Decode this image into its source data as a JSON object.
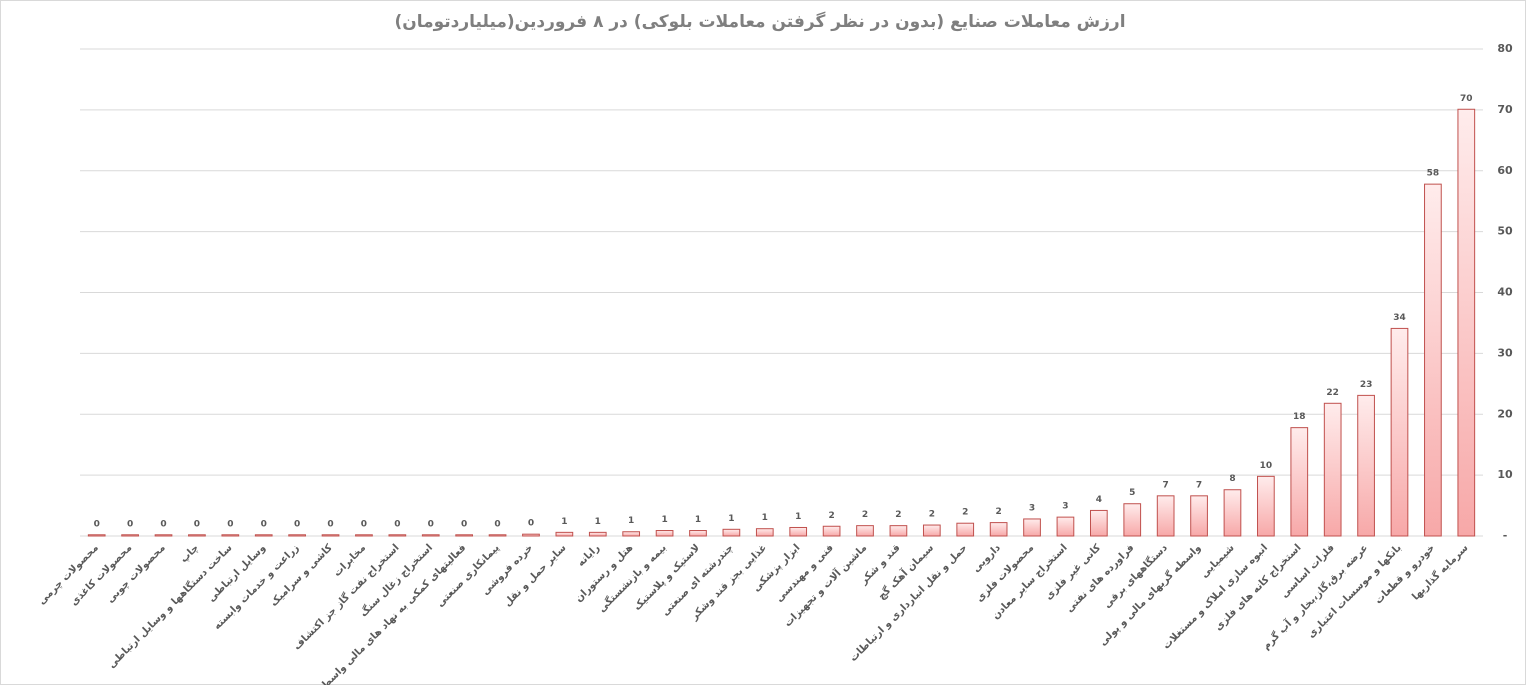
{
  "chart_data": {
    "type": "bar",
    "title": "ارزش معاملات صنایع (بدون در نظر گرفتن معاملات بلوکی) در ۸ فروردین(میلیاردتومان)",
    "categories": [
      "محصولات چرمی",
      "محصولات کاغذی",
      "محصولات چوبی",
      "چاپ",
      "ساخت دستگاهها و وسایل ارتباطی",
      "وسایل ارتباطی",
      "زراعت و خدمات وابسته",
      "کاشی و سرامیک",
      "مخابرات",
      "استخراج نفت گاز جز اکتشاف",
      "استخراج زغال سنگ",
      "فعالیتهای کمکی به نهاد های مالی واسط",
      "پیمانکاری صنعتی",
      "خرده فروشی",
      "سایر حمل و نقل",
      "رایانه",
      "هتل و رستوران",
      "بیمه و بازنشستگی",
      "لاستیک و پلاستیک",
      "چندرشته ای صنعتی",
      "غذایی بجز قند وشکر",
      "ابزار پزشکی",
      "فنی و مهندسی",
      "ماشین آلات و تجهیزات",
      "قند و شکر",
      "سیمان آهک گچ",
      "حمل و نقل انبارداری و ارتباطات",
      "دارویی",
      "محصولات فلزی",
      "استخراج سایر معادن",
      "کانی غیر فلزی",
      "فراورده های نفتی",
      "دستگاههای برقی",
      "واسطه گریهای مالی و پولی",
      "شیمیایی",
      "انبوه سازی املاک و مستغلات",
      "استخراج کانه های فلزی",
      "فلزات اساسی",
      "عرضه برق،گاز،بخار و آب گرم",
      "بانکها و موسسات اعتباری",
      "خودرو و قطعات",
      "سرمایه گذاریها"
    ],
    "values": [
      0.2,
      0.2,
      0.2,
      0.2,
      0.2,
      0.2,
      0.2,
      0.2,
      0.2,
      0.2,
      0.2,
      0.2,
      0.2,
      0.3,
      0.6,
      0.6,
      0.7,
      0.9,
      0.9,
      1.1,
      1.2,
      1.4,
      1.6,
      1.7,
      1.7,
      1.8,
      2.1,
      2.2,
      2.8,
      3.1,
      4.2,
      5.3,
      6.6,
      6.6,
      7.6,
      9.8,
      17.8,
      21.8,
      23.1,
      34.1,
      57.8,
      70.1
    ],
    "value_labels": [
      "0",
      "0",
      "0",
      "0",
      "0",
      "0",
      "0",
      "0",
      "0",
      "0",
      "0",
      "0",
      "0",
      "0",
      "1",
      "1",
      "1",
      "1",
      "1",
      "1",
      "1",
      "1",
      "2",
      "2",
      "2",
      "2",
      "2",
      "2",
      "3",
      "3",
      "4",
      "5",
      "7",
      "7",
      "8",
      "10",
      "18",
      "22",
      "23",
      "34",
      "58",
      "70"
    ],
    "color": "#c0504d",
    "ylim": [
      0,
      80
    ],
    "yticks": [
      {
        "value": 0,
        "label": "-"
      },
      10,
      20,
      30,
      40,
      50,
      60,
      70,
      80
    ],
    "grid": true
  }
}
